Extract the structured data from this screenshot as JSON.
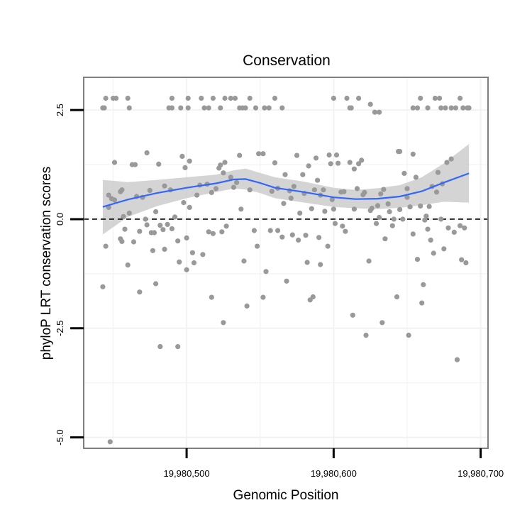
{
  "chart_data": {
    "type": "scatter",
    "title": "Conservation",
    "xlabel": "Genomic Position",
    "ylabel": "phyloP LRT conservation scores",
    "xlim": [
      19980430,
      19980705
    ],
    "ylim": [
      -5.25,
      3.25
    ],
    "x_ticks": [
      19980500,
      19980600,
      19980700
    ],
    "x_tick_labels": [
      "19,980,500",
      "19,980,600",
      "19,980,700"
    ],
    "y_ticks": [
      2.5,
      0.0,
      -2.5,
      -5.0
    ],
    "y_tick_labels": [
      "2.5",
      "0.0",
      "-2.5",
      "-5.0"
    ],
    "reference_line": {
      "y": 0,
      "style": "dashed",
      "color": "#000000"
    },
    "grid": true,
    "colors": {
      "points": "#999999",
      "smooth": "#3366ff",
      "band": "#cccccc",
      "panel_border": "#7f7f7f",
      "grid": "#f2f2f2"
    },
    "points": [
      [
        19980443,
        2.55
      ],
      [
        19980444,
        2.55
      ],
      [
        19980445,
        2.77
      ],
      [
        19980450,
        2.77
      ],
      [
        19980452,
        2.77
      ],
      [
        19980460,
        2.77
      ],
      [
        19980461,
        2.55
      ],
      [
        19980490,
        2.77
      ],
      [
        19980488,
        2.55
      ],
      [
        19980490,
        2.55
      ],
      [
        19980496,
        2.55
      ],
      [
        19980501,
        2.77
      ],
      [
        19980501,
        2.55
      ],
      [
        19980510,
        2.77
      ],
      [
        19980512,
        2.55
      ],
      [
        19980515,
        2.55
      ],
      [
        19980518,
        2.77
      ],
      [
        19980523,
        2.55
      ],
      [
        19980526,
        2.77
      ],
      [
        19980530,
        2.77
      ],
      [
        19980533,
        2.77
      ],
      [
        19980536,
        2.55
      ],
      [
        19980538,
        2.55
      ],
      [
        19980540,
        2.55
      ],
      [
        19980543,
        2.77
      ],
      [
        19980547,
        2.55
      ],
      [
        19980553,
        2.55
      ],
      [
        19980556,
        2.55
      ],
      [
        19980560,
        2.77
      ],
      [
        19980565,
        2.55
      ],
      [
        19980600,
        2.77
      ],
      [
        19980609,
        2.77
      ],
      [
        19980611,
        2.55
      ],
      [
        19980612,
        2.55
      ],
      [
        19980617,
        2.77
      ],
      [
        19980625,
        2.63
      ],
      [
        19980628,
        2.45
      ],
      [
        19980631,
        2.45
      ],
      [
        19980654,
        2.55
      ],
      [
        19980657,
        2.55
      ],
      [
        19980659,
        2.77
      ],
      [
        19980664,
        2.55
      ],
      [
        19980669,
        2.77
      ],
      [
        19980672,
        2.77
      ],
      [
        19980673,
        2.55
      ],
      [
        19980676,
        2.55
      ],
      [
        19980680,
        2.55
      ],
      [
        19980683,
        2.55
      ],
      [
        19980686,
        2.77
      ],
      [
        19980688,
        2.55
      ],
      [
        19980691,
        2.55
      ],
      [
        19980692,
        2.55
      ],
      [
        19980443,
        -1.55
      ],
      [
        19980445,
        -0.62
      ],
      [
        19980447,
        0.27
      ],
      [
        19980447,
        0.55
      ],
      [
        19980451,
        1.3
      ],
      [
        19980449,
        0.47
      ],
      [
        19980451,
        0.44
      ],
      [
        19980455,
        0.63
      ],
      [
        19980456,
        0.67
      ],
      [
        19980455,
        -0.45
      ],
      [
        19980456,
        -0.51
      ],
      [
        19980457,
        0.06
      ],
      [
        19980458,
        -0.23
      ],
      [
        19980460,
        -1.05
      ],
      [
        19980461,
        0.14
      ],
      [
        19980463,
        1.25
      ],
      [
        19980465,
        1.25
      ],
      [
        19980464,
        -0.52
      ],
      [
        19980466,
        0.52
      ],
      [
        19980468,
        -1.67
      ],
      [
        19980468,
        -0.28
      ],
      [
        19980470,
        0.5
      ],
      [
        19980472,
        0.0
      ],
      [
        19980473,
        -0.13
      ],
      [
        19980473,
        1.52
      ],
      [
        19980475,
        0.66
      ],
      [
        19980476,
        -0.31
      ],
      [
        19980477,
        -0.72
      ],
      [
        19980479,
        0.17
      ],
      [
        19980478,
        -0.31
      ],
      [
        19980479,
        -1.48
      ],
      [
        19980481,
        1.26
      ],
      [
        19980482,
        -0.14
      ],
      [
        19980482,
        -2.92
      ],
      [
        19980484,
        -0.24
      ],
      [
        19980485,
        0.76
      ],
      [
        19980485,
        -0.69
      ],
      [
        19980487,
        -0.12
      ],
      [
        19980489,
        0.67
      ],
      [
        19980490,
        -0.22
      ],
      [
        19980492,
        0.05
      ],
      [
        19980494,
        -2.92
      ],
      [
        19980494,
        -0.5
      ],
      [
        19980495,
        -0.98
      ],
      [
        19980497,
        1.44
      ],
      [
        19980498,
        0.38
      ],
      [
        19980499,
        1.18
      ],
      [
        19980500,
        -0.43
      ],
      [
        19980500,
        -1.16
      ],
      [
        19980502,
        1.33
      ],
      [
        19980502,
        0.27
      ],
      [
        19980504,
        -0.77
      ],
      [
        19980505,
        -1.0
      ],
      [
        19980507,
        0.55
      ],
      [
        19980509,
        0.78
      ],
      [
        19980511,
        -0.81
      ],
      [
        19980514,
        0.8
      ],
      [
        19980515,
        -0.29
      ],
      [
        19980517,
        -1.79
      ],
      [
        19980517,
        0.61
      ],
      [
        19980518,
        -0.33
      ],
      [
        19980520,
        0.7
      ],
      [
        19980522,
        1.17
      ],
      [
        19980523,
        1.24
      ],
      [
        19980524,
        -0.29
      ],
      [
        19980525,
        -2.37
      ],
      [
        19980525,
        1.06
      ],
      [
        19980526,
        1.3
      ],
      [
        19980527,
        -0.16
      ],
      [
        19980530,
        0.96
      ],
      [
        19980532,
        0.73
      ],
      [
        19980534,
        0.84
      ],
      [
        19980536,
        1.46
      ],
      [
        19980537,
        0.23
      ],
      [
        19980539,
        -0.96
      ],
      [
        19980541,
        -1.99
      ],
      [
        19980543,
        0.67
      ],
      [
        19980546,
        -0.26
      ],
      [
        19980548,
        -0.62
      ],
      [
        19980549,
        1.5
      ],
      [
        19980552,
        1.5
      ],
      [
        19980552,
        -1.79
      ],
      [
        19980554,
        -1.2
      ],
      [
        19980557,
        -0.26
      ],
      [
        19980558,
        0.64
      ],
      [
        19980560,
        1.29
      ],
      [
        19980562,
        -0.26
      ],
      [
        19980562,
        0.71
      ],
      [
        19980565,
        -0.41
      ],
      [
        19980566,
        0.36
      ],
      [
        19980567,
        1.02
      ],
      [
        19980568,
        -1.42
      ],
      [
        19980570,
        0.65
      ],
      [
        19980571,
        0.48
      ],
      [
        19980572,
        -0.36
      ],
      [
        19980573,
        0.75
      ],
      [
        19980575,
        1.46
      ],
      [
        19980576,
        -0.48
      ],
      [
        19980577,
        0.14
      ],
      [
        19980579,
        1.02
      ],
      [
        19980580,
        0.59
      ],
      [
        19980581,
        -0.37
      ],
      [
        19980582,
        -0.99
      ],
      [
        19980583,
        1.22
      ],
      [
        19980584,
        -1.85
      ],
      [
        19980585,
        0.24
      ],
      [
        19980586,
        -1.78
      ],
      [
        19980587,
        0.67
      ],
      [
        19980588,
        1.4
      ],
      [
        19980589,
        0.89
      ],
      [
        19980590,
        -0.42
      ],
      [
        19980591,
        0.55
      ],
      [
        19980591,
        -1.04
      ],
      [
        19980593,
        0.67
      ],
      [
        19980594,
        0.18
      ],
      [
        19980596,
        -0.62
      ],
      [
        19980597,
        1.47
      ],
      [
        19980598,
        1.27
      ],
      [
        19980599,
        0.45
      ],
      [
        19980600,
        0.23
      ],
      [
        19980601,
        -0.1
      ],
      [
        19980602,
        1.47
      ],
      [
        19980603,
        1.28
      ],
      [
        19980605,
        0.62
      ],
      [
        19980606,
        -0.16
      ],
      [
        19980607,
        0.63
      ],
      [
        19980608,
        -0.28
      ],
      [
        19980611,
        1.3
      ],
      [
        19980613,
        -2.2
      ],
      [
        19980614,
        1.15
      ],
      [
        19980614,
        0.23
      ],
      [
        19980616,
        0.7
      ],
      [
        19980617,
        1.27
      ],
      [
        19980619,
        1.35
      ],
      [
        19980620,
        0.56
      ],
      [
        19980621,
        0.61
      ],
      [
        19980622,
        -2.66
      ],
      [
        19980624,
        -0.96
      ],
      [
        19980625,
        0.2
      ],
      [
        19980626,
        0.25
      ],
      [
        19980629,
        -0.1
      ],
      [
        19980630,
        0.31
      ],
      [
        19980631,
        0.04
      ],
      [
        19980632,
        0.58
      ],
      [
        19980633,
        -2.37
      ],
      [
        19980634,
        0.68
      ],
      [
        19980635,
        -0.45
      ],
      [
        19980637,
        0.35
      ],
      [
        19980638,
        0.17
      ],
      [
        19980640,
        -0.15
      ],
      [
        19980641,
        0.0
      ],
      [
        19980643,
        -1.78
      ],
      [
        19980644,
        1.55
      ],
      [
        19980645,
        0.22
      ],
      [
        19980645,
        1.55
      ],
      [
        19980647,
        0.0
      ],
      [
        19980648,
        1.05
      ],
      [
        19980650,
        0.5
      ],
      [
        19980650,
        0.7
      ],
      [
        19980651,
        -2.66
      ],
      [
        19980652,
        0.28
      ],
      [
        19980654,
        1.49
      ],
      [
        19980654,
        -0.34
      ],
      [
        19980656,
        0.96
      ],
      [
        19980657,
        -0.92
      ],
      [
        19980659,
        0.3
      ],
      [
        19980660,
        -1.92
      ],
      [
        19980661,
        -1.5
      ],
      [
        19980662,
        -0.02
      ],
      [
        19980663,
        0.07
      ],
      [
        19980664,
        -0.23
      ],
      [
        19980665,
        0.29
      ],
      [
        19980666,
        -0.48
      ],
      [
        19980667,
        0.75
      ],
      [
        19980668,
        -0.78
      ],
      [
        19980670,
        0.62
      ],
      [
        19980671,
        1.07
      ],
      [
        19980673,
        0.0
      ],
      [
        19980674,
        0.81
      ],
      [
        19980675,
        -0.68
      ],
      [
        19980677,
        1.3
      ],
      [
        19980678,
        -0.2
      ],
      [
        19980680,
        1.38
      ],
      [
        19980682,
        -0.3
      ],
      [
        19980684,
        -3.22
      ],
      [
        19980686,
        -0.15
      ],
      [
        19980687,
        -0.93
      ],
      [
        19980689,
        -0.2
      ],
      [
        19980690,
        -1.0
      ],
      [
        19980448,
        -5.1
      ]
    ],
    "smooth": {
      "x": [
        19980443,
        19980460,
        19980480,
        19980500,
        19980520,
        19980532,
        19980540,
        19980550,
        19980560,
        19980580,
        19980600,
        19980615,
        19980630,
        19980645,
        19980660,
        19980675,
        19980692
      ],
      "fit": [
        0.28,
        0.45,
        0.6,
        0.72,
        0.82,
        0.91,
        0.92,
        0.83,
        0.72,
        0.62,
        0.5,
        0.46,
        0.47,
        0.52,
        0.64,
        0.84,
        1.05
      ],
      "lower": [
        -0.35,
        0.05,
        0.3,
        0.48,
        0.62,
        0.7,
        0.68,
        0.6,
        0.48,
        0.38,
        0.28,
        0.25,
        0.23,
        0.26,
        0.32,
        0.4,
        0.38
      ],
      "upper": [
        0.9,
        0.85,
        0.9,
        0.96,
        1.02,
        1.12,
        1.16,
        1.06,
        0.96,
        0.86,
        0.72,
        0.67,
        0.71,
        0.78,
        0.96,
        1.28,
        1.72
      ]
    }
  }
}
